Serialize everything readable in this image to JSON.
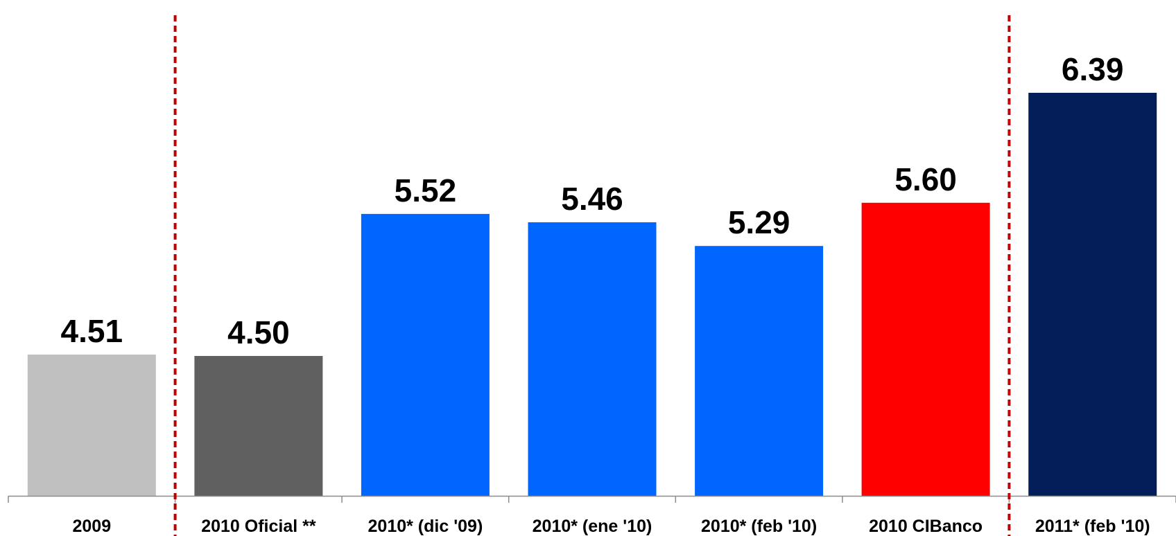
{
  "chart_data": {
    "type": "bar",
    "categories": [
      "2009",
      "2010 Oficial **",
      "2010* (dic '09)",
      "2010* (ene '10)",
      "2010* (feb '10)",
      "2010 CIBanco",
      "2011* (feb '10)"
    ],
    "values": [
      4.51,
      4.5,
      5.52,
      5.46,
      5.29,
      5.6,
      6.39
    ],
    "value_labels": [
      "4.51",
      "4.50",
      "5.52",
      "5.46",
      "5.29",
      "5.60",
      "6.39"
    ],
    "colors": [
      "#C0C0C0",
      "#606060",
      "#0066FF",
      "#0066FF",
      "#0066FF",
      "#FF0000",
      "#041E5A"
    ],
    "separator_color": "#C00000",
    "separators_after_index": [
      0,
      5
    ],
    "title": "",
    "xlabel": "",
    "ylabel": "",
    "ylim": [
      3.5,
      6.5
    ],
    "grid": false,
    "legend": "none"
  }
}
